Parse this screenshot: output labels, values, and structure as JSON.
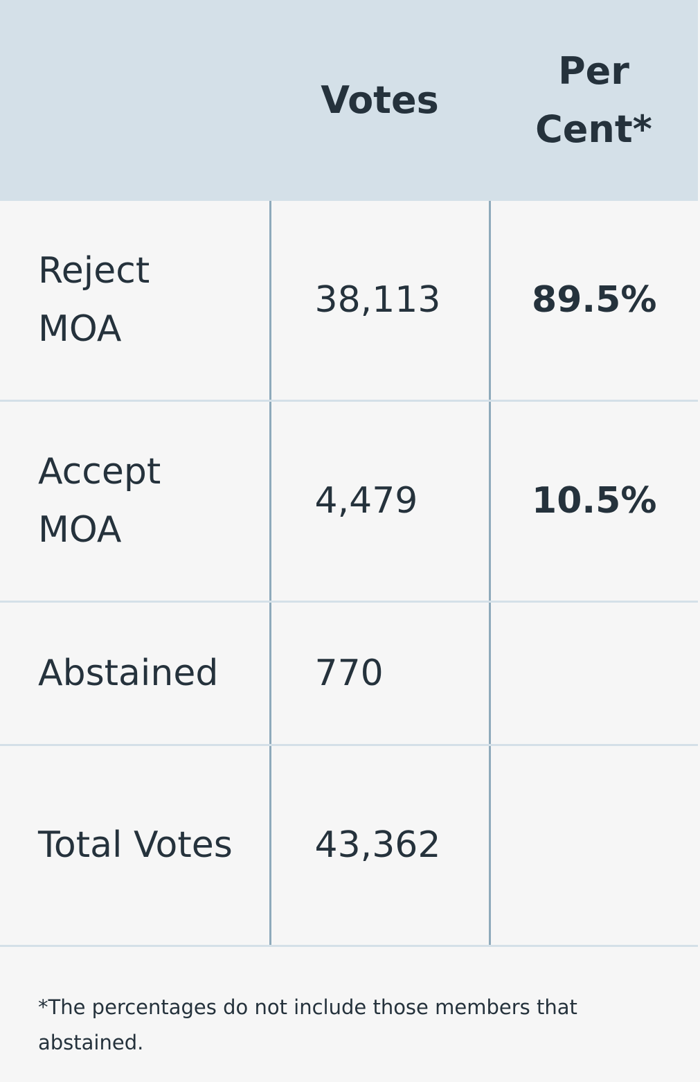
{
  "table": {
    "columns": [
      "Votes",
      "Per Cent*"
    ],
    "rows": [
      {
        "label": "Reject MOA",
        "votes": "38,113",
        "percent": "89.5%"
      },
      {
        "label": "Accept MOA",
        "votes": "4,479",
        "percent": "10.5%"
      },
      {
        "label": "Abstained",
        "votes": "770"
      },
      {
        "label": "Total Votes",
        "votes": "43,362"
      }
    ],
    "footnote": "*The percentages do not include those members that abstained."
  }
}
